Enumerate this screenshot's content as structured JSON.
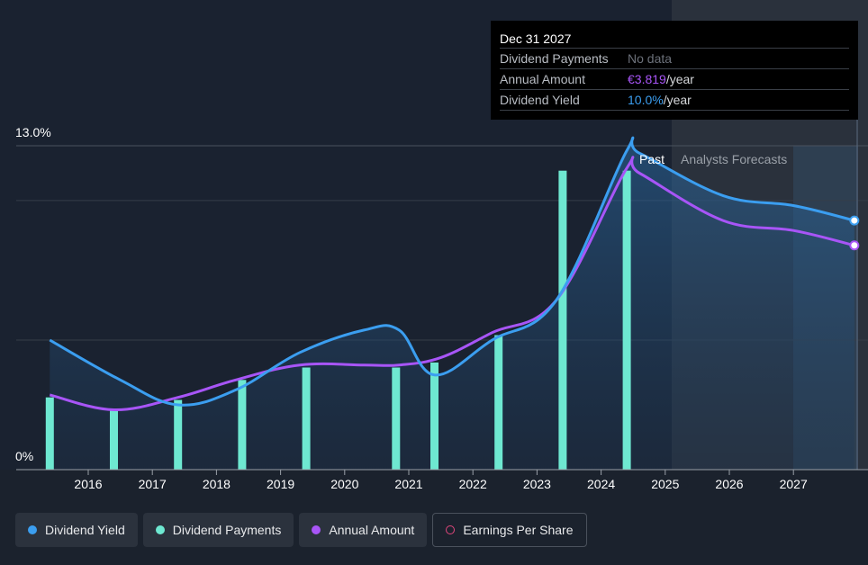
{
  "chart_data": {
    "type": "line",
    "y_axis": {
      "min": 0,
      "max": 13.0,
      "tick_labels": [
        "13.0%",
        "0%"
      ]
    },
    "x_tick_labels": [
      "2016",
      "2017",
      "2018",
      "2019",
      "2020",
      "2021",
      "2022",
      "2023",
      "2024",
      "2025",
      "2026",
      "2027"
    ],
    "region_labels": {
      "past": "Past",
      "forecast": "Analysts Forecasts"
    },
    "series": [
      {
        "name": "Dividend Yield",
        "color": "#3b9ef0",
        "points": [
          [
            2015.4,
            5.2
          ],
          [
            2016.5,
            3.6
          ],
          [
            2017.4,
            2.6
          ],
          [
            2018.3,
            3.2
          ],
          [
            2019.3,
            4.7
          ],
          [
            2020.3,
            5.6
          ],
          [
            2020.85,
            5.6
          ],
          [
            2021.4,
            3.8
          ],
          [
            2022.3,
            5.2
          ],
          [
            2023.3,
            6.8
          ],
          [
            2024.4,
            12.8
          ],
          [
            2024.6,
            12.7
          ],
          [
            2025.9,
            11.0
          ],
          [
            2027.0,
            10.6
          ],
          [
            2027.95,
            10.0
          ]
        ]
      },
      {
        "name": "Annual Amount",
        "color": "#a855f7",
        "points": [
          [
            2015.4,
            3.0
          ],
          [
            2016.4,
            2.4
          ],
          [
            2017.4,
            2.9
          ],
          [
            2018.3,
            3.6
          ],
          [
            2019.3,
            4.2
          ],
          [
            2020.3,
            4.2
          ],
          [
            2020.85,
            4.2
          ],
          [
            2021.5,
            4.5
          ],
          [
            2022.3,
            5.5
          ],
          [
            2023.3,
            6.8
          ],
          [
            2024.4,
            12.1
          ],
          [
            2024.6,
            11.9
          ],
          [
            2025.9,
            10.0
          ],
          [
            2027.0,
            9.6
          ],
          [
            2027.95,
            9.0
          ]
        ]
      },
      {
        "name": "Dividend Payments",
        "type": "bar",
        "color": "#6ee8d1",
        "points": [
          [
            2015.4,
            2.9
          ],
          [
            2016.4,
            2.4
          ],
          [
            2017.4,
            2.8
          ],
          [
            2018.4,
            3.6
          ],
          [
            2019.4,
            4.1
          ],
          [
            2020.8,
            4.1
          ],
          [
            2021.4,
            4.3
          ],
          [
            2022.4,
            5.4
          ],
          [
            2023.4,
            12.0
          ],
          [
            2024.4,
            12.0
          ]
        ]
      }
    ]
  },
  "tooltip": {
    "date": "Dec 31 2027",
    "rows": [
      {
        "label": "Dividend Payments",
        "value": "No data",
        "suffix": ""
      },
      {
        "label": "Annual Amount",
        "value": "€3.819",
        "suffix": "/year"
      },
      {
        "label": "Dividend Yield",
        "value": "10.0%",
        "suffix": "/year"
      }
    ]
  },
  "legend": [
    {
      "label": "Dividend Yield",
      "color": "#3b9ef0"
    },
    {
      "label": "Dividend Payments",
      "color": "#6ee8d1"
    },
    {
      "label": "Annual Amount",
      "color": "#a855f7"
    },
    {
      "label": "Earnings Per Share",
      "color": "#e0467c"
    }
  ]
}
